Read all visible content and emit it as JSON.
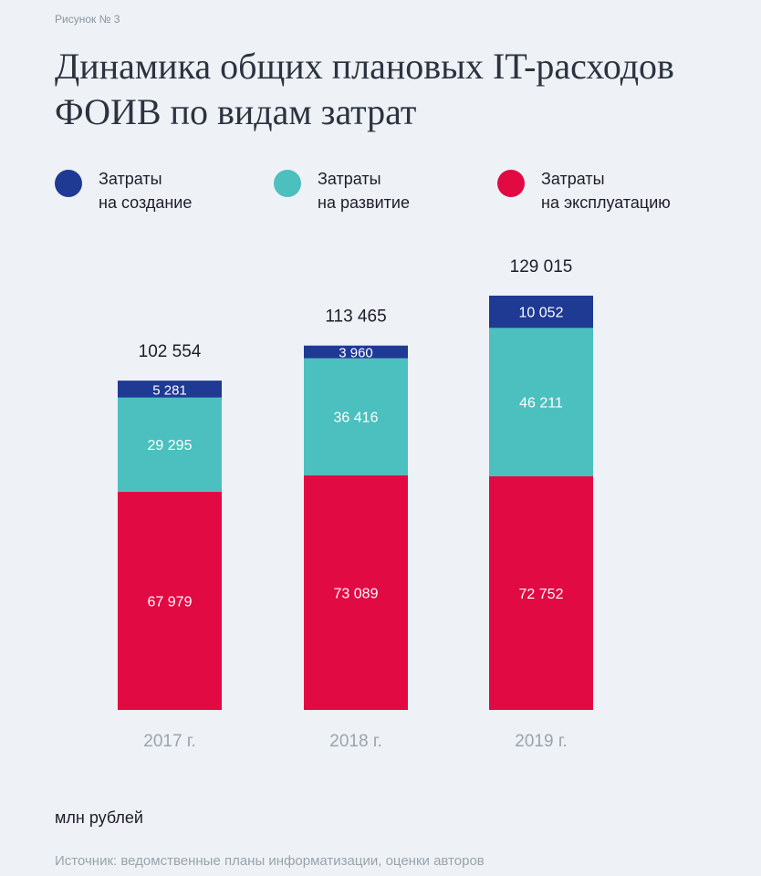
{
  "figure_label": "Рисунок № 3",
  "title": "Динамика общих плановых IT-расходов ФОИВ по видам затрат",
  "legend": [
    {
      "label": "Затраты\nна создание",
      "color": "#1f3a93"
    },
    {
      "label": "Затраты\nна развитие",
      "color": "#4bc0be"
    },
    {
      "label": "Затраты\nна эксплуатацию",
      "color": "#e20a43"
    }
  ],
  "unit": "млн рублей",
  "source": "Источник: ведомственные планы информатизации, оценки авторов",
  "chart_data": {
    "type": "bar",
    "stacked": true,
    "categories": [
      "2017 г.",
      "2018 г.",
      "2019 г."
    ],
    "series": [
      {
        "name": "Затраты на эксплуатацию",
        "values": [
          67979,
          73089,
          72752
        ],
        "labels": [
          "67 979",
          "73 089",
          "72 752"
        ],
        "color": "#e20a43"
      },
      {
        "name": "Затраты на развитие",
        "values": [
          29295,
          36416,
          46211
        ],
        "labels": [
          "29 295",
          "36 416",
          "46 211"
        ],
        "color": "#4bc0be"
      },
      {
        "name": "Затраты на создание",
        "values": [
          5281,
          3960,
          10052
        ],
        "labels": [
          "5 281",
          "3 960",
          "10 052"
        ],
        "color": "#1f3a93"
      }
    ],
    "totals": [
      102554,
      113465,
      129015
    ],
    "total_labels": [
      "102 554",
      "113 465",
      "129 015"
    ],
    "ylim": [
      0,
      129015
    ],
    "grid": false,
    "legend_position": "top"
  }
}
